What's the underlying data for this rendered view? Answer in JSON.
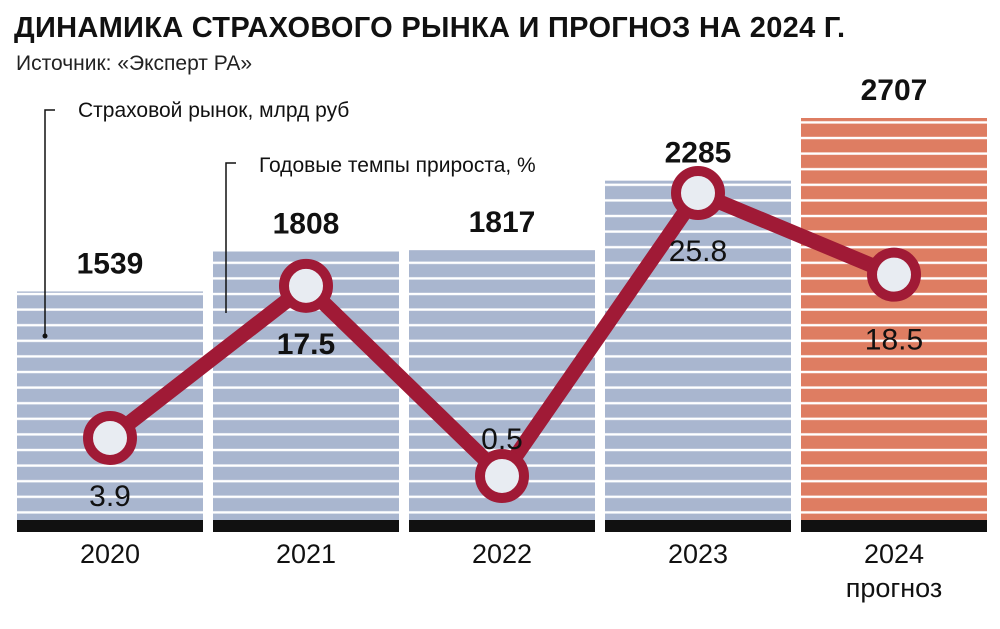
{
  "title": "ДИНАМИКА СТРАХОВОГО РЫНКА И ПРОГНОЗ НА 2024 Г.",
  "source": "Источник: «Эксперт РА»",
  "legend": {
    "market": "Страховой рынок, млрд руб",
    "growth": "Годовые темпы прироста, %"
  },
  "colors": {
    "bar": "#a9b6cf",
    "bar_forecast": "#de7d62",
    "line": "#a01a36",
    "marker_fill": "#e8ecf2",
    "baseline": "#111111"
  },
  "chart_data": {
    "type": "bar",
    "categories": [
      "2020",
      "2021",
      "2022",
      "2023",
      "2024"
    ],
    "category_sublabels": [
      "",
      "",
      "",
      "",
      "прогноз"
    ],
    "series": [
      {
        "name": "Страховой рынок, млрд руб",
        "type": "bar",
        "values": [
          1539,
          1808,
          1817,
          2285,
          2707
        ],
        "labels": [
          "1539",
          "1808",
          "1817",
          "2285",
          "2707"
        ],
        "forecast": [
          false,
          false,
          false,
          false,
          true
        ]
      },
      {
        "name": "Годовые темпы прироста, %",
        "type": "line",
        "values": [
          3.9,
          17.5,
          0.5,
          25.8,
          18.5
        ],
        "labels": [
          "3.9",
          "17.5",
          "0.5",
          "25.8",
          "18.5"
        ]
      }
    ],
    "ylim_bars": [
      0,
      2707
    ],
    "ylim_line": [
      0.5,
      25.8
    ],
    "grid": false,
    "legend_position": "top-left"
  }
}
